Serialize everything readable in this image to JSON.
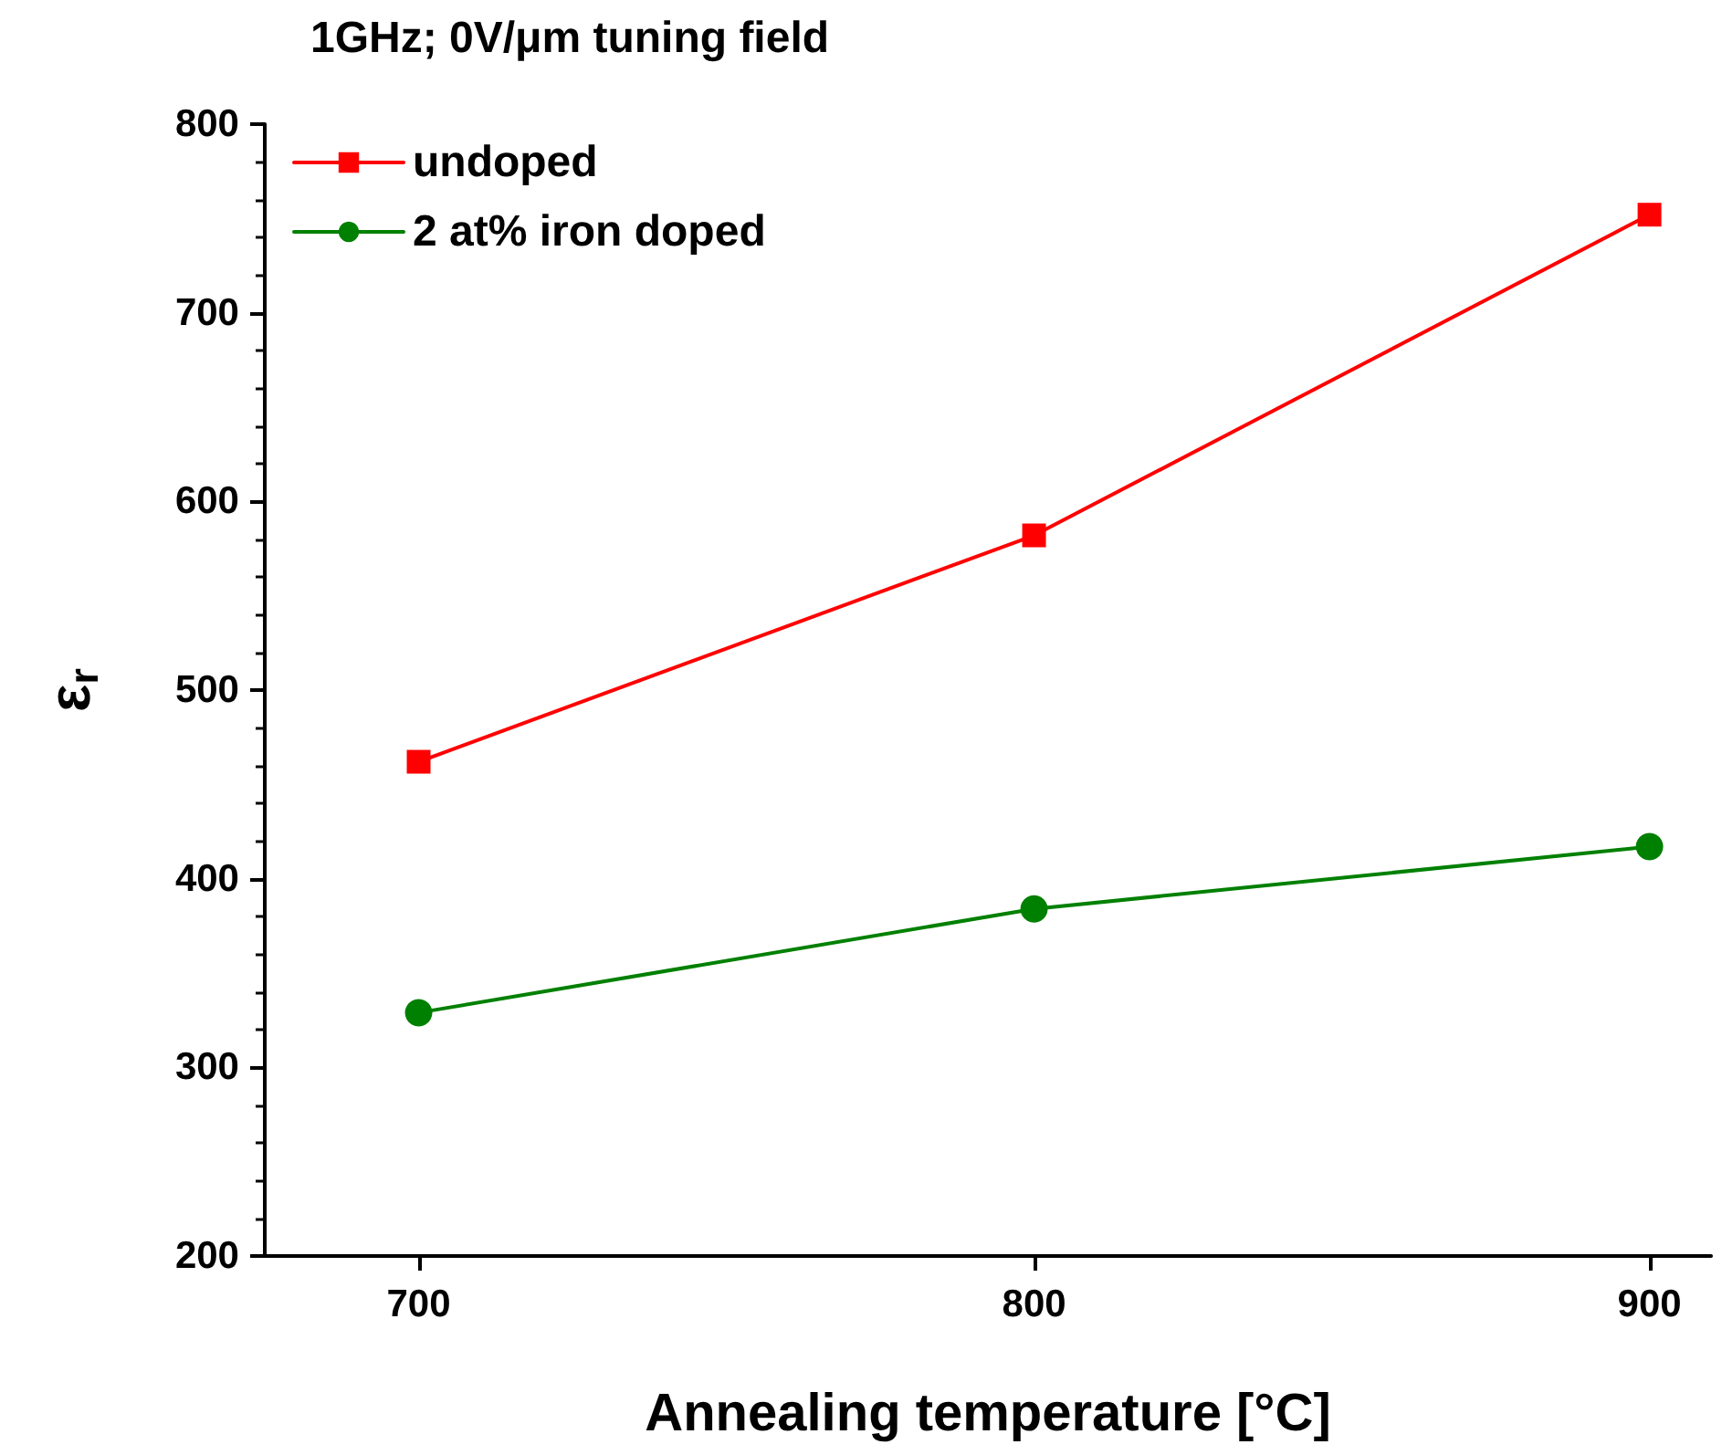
{
  "chart_data": {
    "type": "line",
    "title": "1GHz; 0V/μm tuning field",
    "xlabel": "Annealing temperature [°C]",
    "ylabel": "ε$_{r}$",
    "x": [
      700,
      800,
      900
    ],
    "series": [
      {
        "name": "undoped",
        "color": "#ff0000",
        "marker": "square",
        "values": [
          462,
          582,
          752
        ]
      },
      {
        "name": "2 at% iron doped",
        "color": "#008000",
        "marker": "circle",
        "values": [
          329,
          384,
          417
        ]
      }
    ],
    "xlim": [
      675,
      910
    ],
    "xticks": [
      700,
      800,
      900
    ],
    "ylim": [
      200,
      800
    ],
    "yticks": [
      200,
      300,
      400,
      500,
      600,
      700,
      800
    ],
    "grid": false,
    "legend": "top left"
  }
}
